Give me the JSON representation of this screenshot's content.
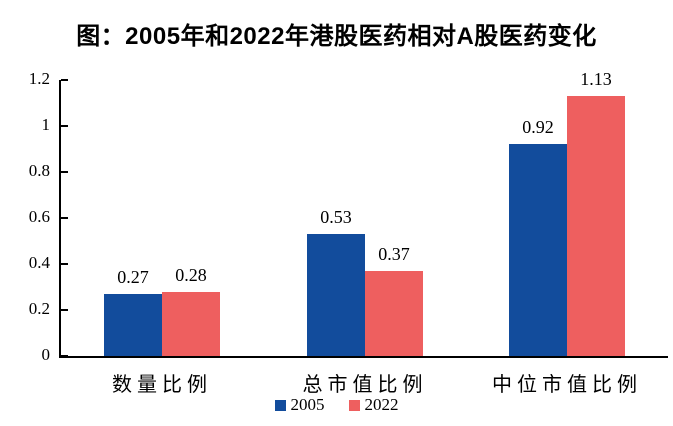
{
  "page": {
    "background_color": "#ffffff",
    "text_color": "#000000"
  },
  "chart_data": {
    "type": "bar",
    "title": "图：2005年和2022年港股医药相对A股医药变化",
    "categories": [
      "数量比例",
      "总市值比例",
      "中位市值比例"
    ],
    "series": [
      {
        "name": "2005",
        "color": "#124C9C",
        "values": [
          0.27,
          0.53,
          0.92
        ],
        "labels": [
          "0.27",
          "0.53",
          "0.92"
        ]
      },
      {
        "name": "2022",
        "color": "#EE5F5F",
        "values": [
          0.28,
          0.37,
          1.13
        ],
        "labels": [
          "0.28",
          "0.37",
          "1.13"
        ]
      }
    ],
    "xlabel": "",
    "ylabel": "",
    "ylim": [
      0,
      1.2
    ],
    "yticks": [
      0,
      0.2,
      0.4,
      0.6,
      0.8,
      1,
      1.2
    ],
    "ytick_labels": [
      "0",
      "0.2",
      "0.4",
      "0.6",
      "0.8",
      "1",
      "1.2"
    ],
    "grid": false,
    "legend_position": "bottom",
    "axis_color": "#000000"
  }
}
